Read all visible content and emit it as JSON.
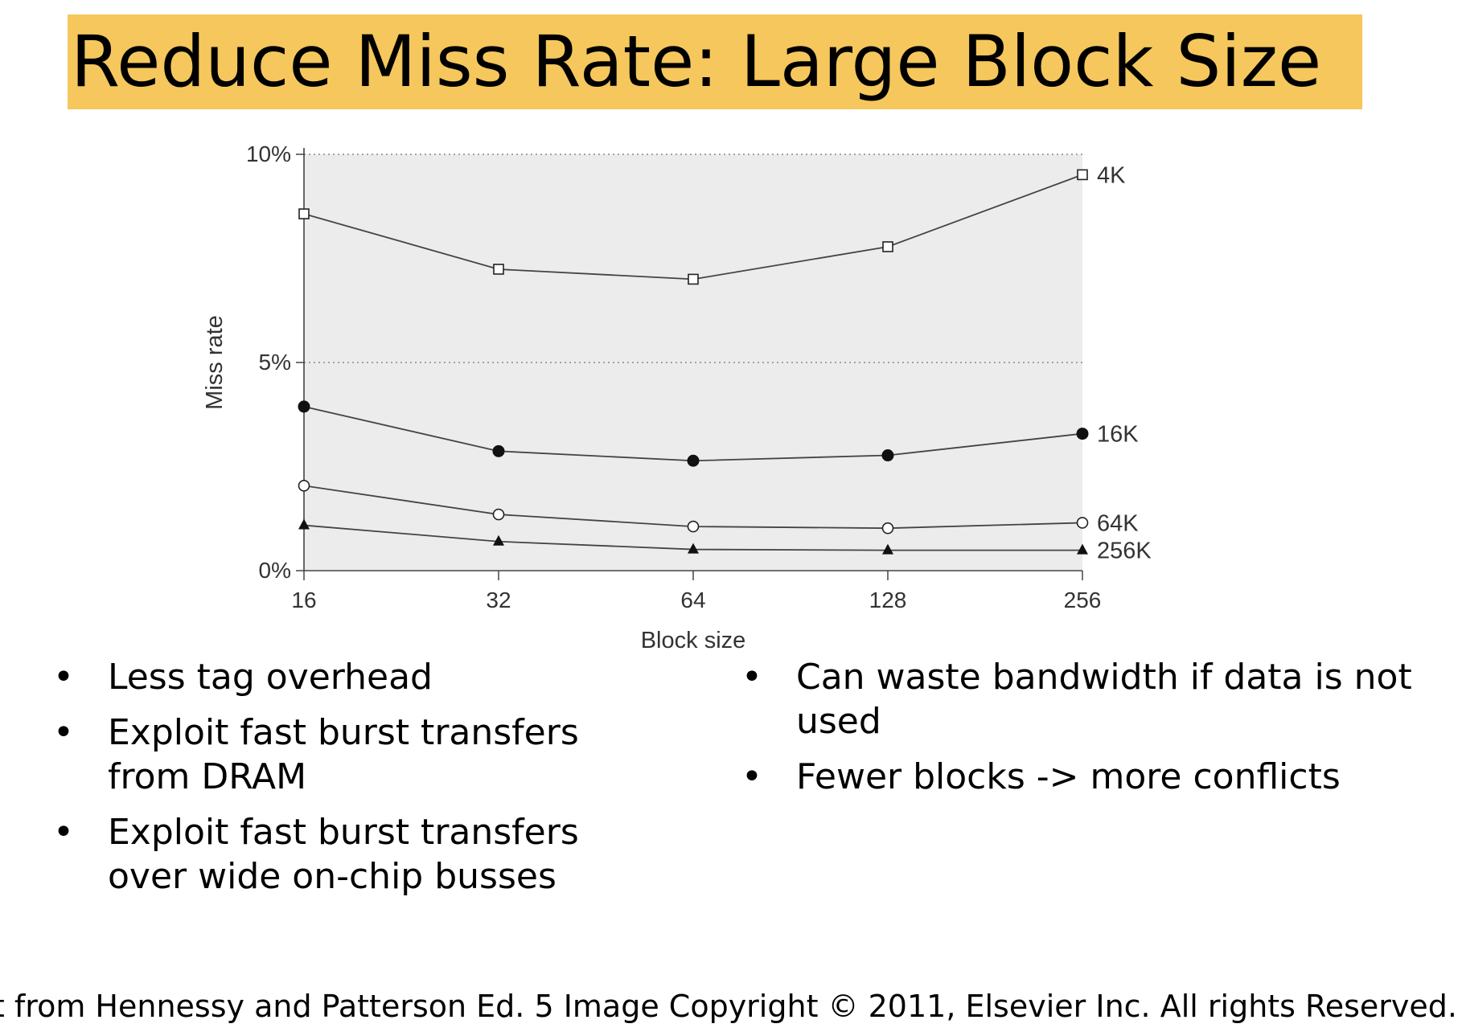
{
  "slide": {
    "title": "Reduce Miss Rate: Large Block Size",
    "title_bg": "#f5c75c",
    "bullets_left": [
      "Less tag overhead",
      "Exploit fast burst transfers from DRAM",
      "Exploit fast burst transfers over wide on-chip busses"
    ],
    "bullets_right": [
      "Can waste bandwidth if data is not used",
      "Fewer blocks -> more conflicts"
    ],
    "footer": "Plot from Hennessy and Patterson Ed. 5 Image Copyright © 2011, Elsevier Inc. All rights Reserved."
  },
  "chart_data": {
    "type": "line",
    "xlabel": "Block size",
    "ylabel": "Miss rate",
    "categories": [
      "16",
      "32",
      "64",
      "128",
      "256"
    ],
    "y_ticks": [
      "0%",
      "5%",
      "10%"
    ],
    "y_tick_values": [
      0,
      5,
      10
    ],
    "ylim": [
      0,
      10
    ],
    "grid": "dotted horizontal at 5% and 10%",
    "plot_bg": "#ececec",
    "series": [
      {
        "name": "4K",
        "marker": "open-square",
        "values": [
          8.57,
          7.24,
          7.0,
          7.78,
          9.51
        ]
      },
      {
        "name": "16K",
        "marker": "filled-circle",
        "values": [
          3.94,
          2.87,
          2.64,
          2.77,
          3.29
        ]
      },
      {
        "name": "64K",
        "marker": "open-circle",
        "values": [
          2.04,
          1.35,
          1.06,
          1.02,
          1.15
        ]
      },
      {
        "name": "256K",
        "marker": "filled-triangle",
        "values": [
          1.09,
          0.7,
          0.51,
          0.49,
          0.49
        ]
      }
    ]
  }
}
